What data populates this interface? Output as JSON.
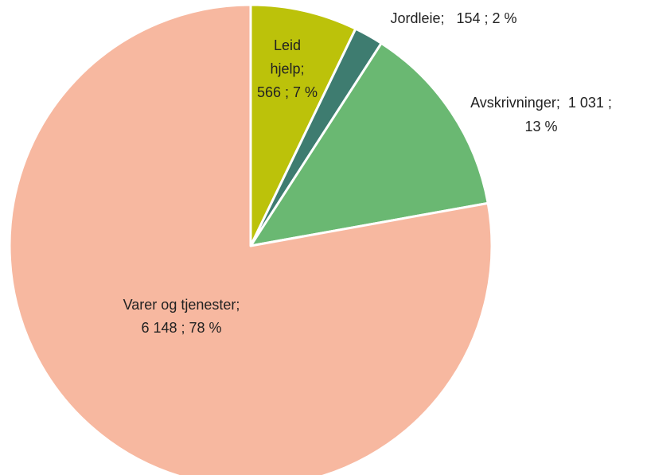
{
  "chart_data": {
    "type": "pie",
    "values": [
      566,
      154,
      1031,
      6148
    ],
    "labels": [
      [
        "Leid",
        "hjelp;",
        "566 ; 7 %"
      ],
      [
        "Jordleie;   154 ; 2 %"
      ],
      [
        "Avskrivninger;  1 031 ;",
        "13 %"
      ],
      [
        "Varer og tjenester;",
        "6 148 ; 78 %"
      ]
    ],
    "colors": [
      "#bcc20a",
      "#3e7c70",
      "#6ab872",
      "#f7b8a0"
    ]
  }
}
